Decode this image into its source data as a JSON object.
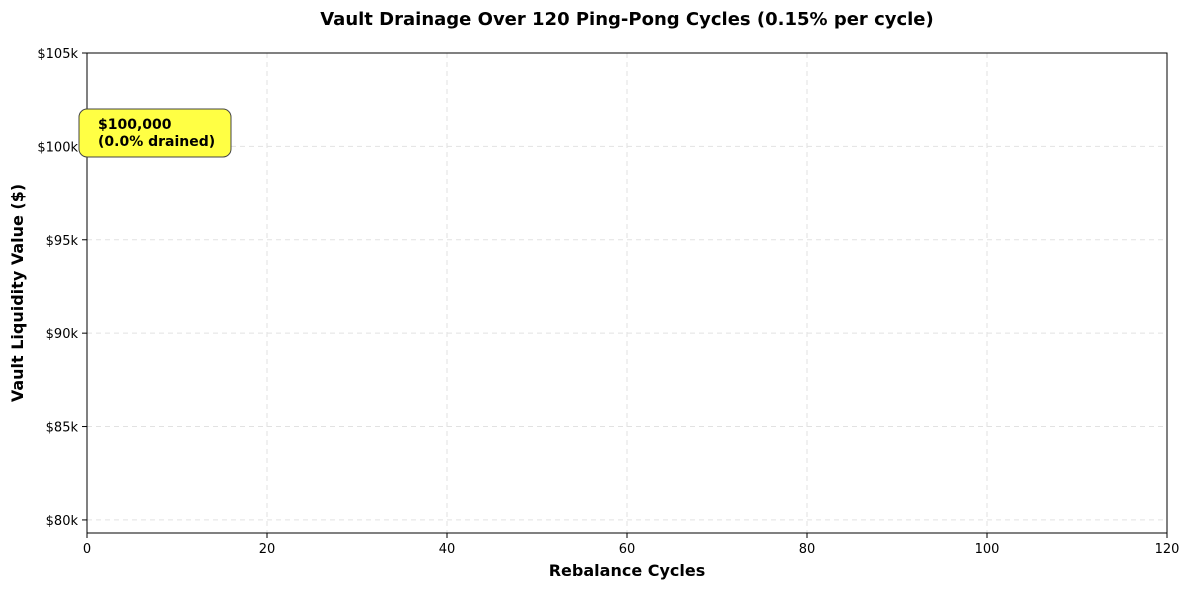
{
  "chart_data": {
    "type": "line",
    "title": "Vault Drainage Over 120 Ping-Pong Cycles (0.15% per cycle)",
    "xlabel": "Rebalance Cycles",
    "ylabel": "Vault Liquidity Value ($)",
    "xlim": [
      0,
      120
    ],
    "ylim": [
      79300,
      105000
    ],
    "x_ticks": [
      0,
      20,
      40,
      60,
      80,
      100,
      120
    ],
    "x_tick_labels": [
      "0",
      "20",
      "40",
      "60",
      "80",
      "100",
      "120"
    ],
    "y_ticks": [
      80000,
      85000,
      90000,
      95000,
      100000,
      105000
    ],
    "y_tick_labels": [
      "$80k",
      "$85k",
      "$90k",
      "$95k",
      "$100k",
      "$105k"
    ],
    "grid": true,
    "series": [
      {
        "color": "#2ecc71",
        "points": [
          {
            "x": 0,
            "y": 100000
          }
        ]
      }
    ],
    "annotation": {
      "x": 0,
      "y": 100000,
      "line1": "$100,000",
      "line2": "(0.0% drained)",
      "box_color": "#ffff44"
    }
  }
}
